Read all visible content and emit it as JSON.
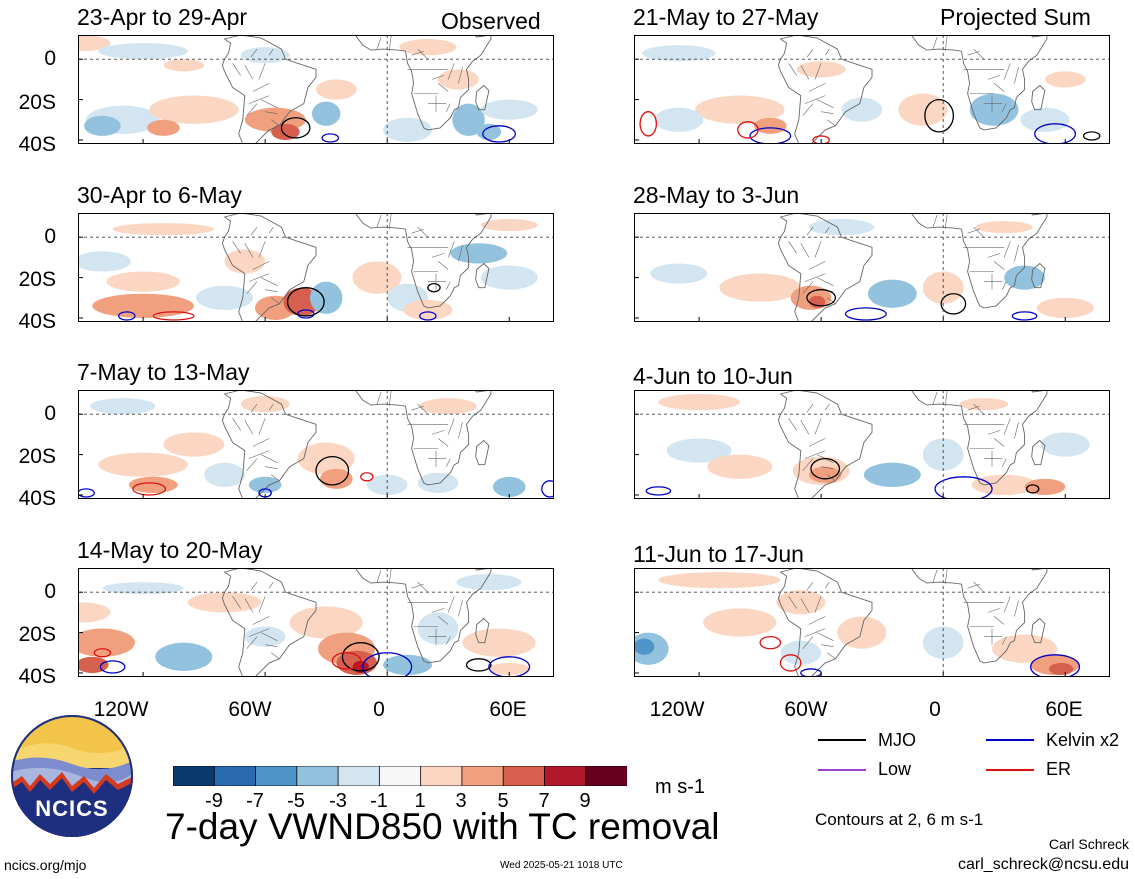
{
  "left_header": "Observed",
  "right_header": "Projected Sum",
  "panels_left": [
    {
      "title": "23-Apr to 29-Apr"
    },
    {
      "title": "30-Apr to 6-May"
    },
    {
      "title": "7-May to 13-May"
    },
    {
      "title": "14-May to 20-May"
    }
  ],
  "panels_right": [
    {
      "title": "21-May to 27-May"
    },
    {
      "title": "28-May to 3-Jun"
    },
    {
      "title": "4-Jun to 10-Jun"
    },
    {
      "title": "11-Jun to 17-Jun"
    }
  ],
  "y_ticks": [
    "0",
    "20S",
    "40S"
  ],
  "x_ticks": [
    "120W",
    "60W",
    "0",
    "60E"
  ],
  "colorbar": {
    "labels": [
      "-9",
      "-7",
      "-5",
      "-3",
      "-1",
      "1",
      "3",
      "5",
      "7",
      "9"
    ],
    "unit": "m s-1",
    "colors": [
      "#0b3b6e",
      "#2a6bb0",
      "#4f95c8",
      "#92c2de",
      "#d2e5f0",
      "#f7f7f7",
      "#fbd6c2",
      "#f0a07f",
      "#d6604d",
      "#b2182b",
      "#67001f"
    ]
  },
  "legend": {
    "mjo": {
      "label": "MJO",
      "color": "#000000"
    },
    "kelvin": {
      "label": "Kelvin x2",
      "color": "#0000cc"
    },
    "low": {
      "label": "Low",
      "color": "#a040d0"
    },
    "er": {
      "label": "ER",
      "color": "#dd1111"
    }
  },
  "contour_note": "Contours at 2, 6 m s-1",
  "main_title": "7-day VWND850 with TC removal",
  "logo_text": "NCICS",
  "footer": {
    "left": "ncics.org/mjo",
    "center": "Wed 2025-05-21 1018 UTC",
    "author": "Carl Schreck",
    "email": "carl_schreck@ncsu.edu"
  }
}
